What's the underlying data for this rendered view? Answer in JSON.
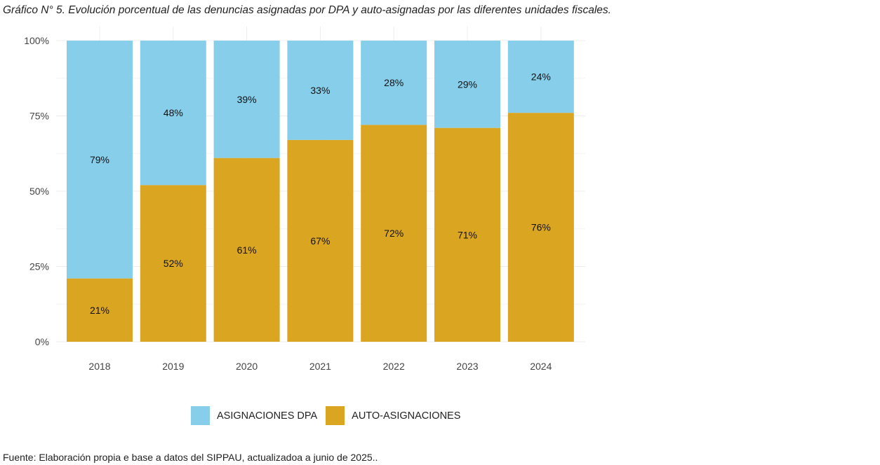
{
  "title": "Gráfico N° 5. Evolución porcentual de las denuncias asignadas por DPA y auto-asignadas por las diferentes unidades fiscales.",
  "source": "Fuente: Elaboración propia e base a datos del SIPPAU, actualizadoa a junio de 2025..",
  "colors": {
    "dpa": "#87CEEB",
    "auto": "#DAA520",
    "grid": "#ececec"
  },
  "chart_data": {
    "type": "bar",
    "stacked": true,
    "percent": true,
    "categories": [
      "2018",
      "2019",
      "2020",
      "2021",
      "2022",
      "2023",
      "2024"
    ],
    "series": [
      {
        "name": "ASIGNACIONES DPA",
        "values": [
          79,
          48,
          39,
          33,
          28,
          29,
          24
        ],
        "labels": [
          "79%",
          "48%",
          "39%",
          "33%",
          "28%",
          "29%",
          "24%"
        ]
      },
      {
        "name": "AUTO-ASIGNACIONES",
        "values": [
          21,
          52,
          61,
          67,
          72,
          71,
          76
        ],
        "labels": [
          "21%",
          "52%",
          "61%",
          "67%",
          "72%",
          "71%",
          "76%"
        ]
      }
    ],
    "yticks": [
      0,
      25,
      50,
      75,
      100
    ],
    "ytick_labels": [
      "0%",
      "25%",
      "50%",
      "75%",
      "100%"
    ],
    "ylim": [
      0,
      100
    ],
    "grid": true,
    "legend_position": "bottom"
  }
}
